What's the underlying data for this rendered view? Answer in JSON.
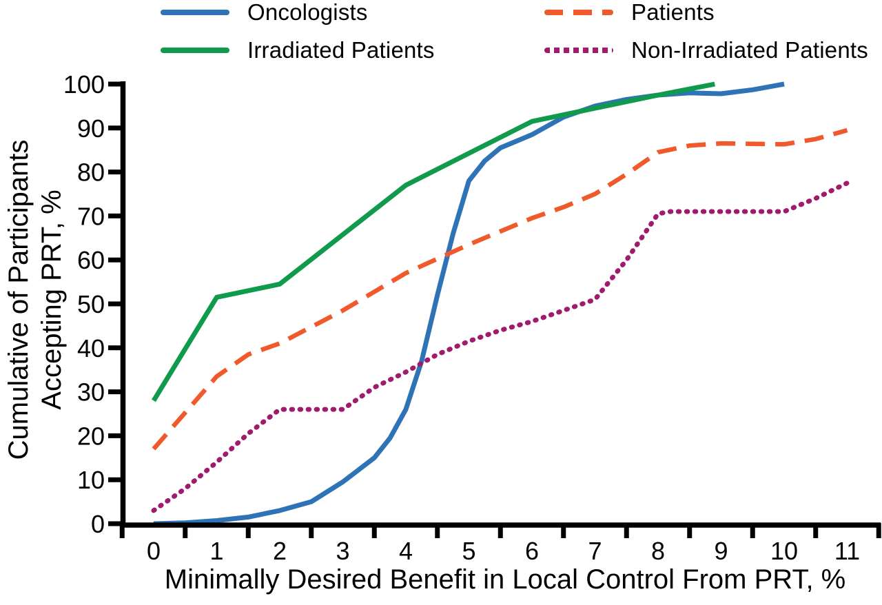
{
  "figure": {
    "background": "#ffffff",
    "text_color": "#000000"
  },
  "legend": {
    "position": "top",
    "items": [
      {
        "label": "Oncologists",
        "series_index": 0
      },
      {
        "label": "Patients",
        "series_index": 1
      },
      {
        "label": "Irradiated Patients",
        "series_index": 2
      },
      {
        "label": "Non-Irradiated Patients",
        "series_index": 3
      }
    ]
  },
  "chart_data": {
    "type": "line",
    "title": "",
    "xlabel": "Minimally Desired Benefit in Local Control From PRT, %",
    "ylabel_lines": [
      "Cumulative of Participants",
      "Accepting PRT, %"
    ],
    "xlim": [
      -0.5,
      11.5
    ],
    "ylim": [
      0,
      100
    ],
    "xticks": [
      0,
      1,
      2,
      3,
      4,
      5,
      6,
      7,
      8,
      9,
      10,
      11
    ],
    "yticks": [
      0,
      10,
      20,
      30,
      40,
      50,
      60,
      70,
      80,
      90,
      100
    ],
    "grid": false,
    "legend_position": "top",
    "series": [
      {
        "name": "Oncologists",
        "color": "#2e73b6",
        "style": "solid",
        "points": [
          [
            0,
            0
          ],
          [
            0.5,
            0.2
          ],
          [
            1,
            0.7
          ],
          [
            1.5,
            1.5
          ],
          [
            2,
            3
          ],
          [
            2.5,
            5
          ],
          [
            3,
            9.5
          ],
          [
            3.5,
            15
          ],
          [
            3.75,
            19.5
          ],
          [
            4,
            26
          ],
          [
            4.25,
            37
          ],
          [
            4.5,
            52
          ],
          [
            4.75,
            66
          ],
          [
            5,
            78
          ],
          [
            5.25,
            82.5
          ],
          [
            5.5,
            85.5
          ],
          [
            6,
            88.5
          ],
          [
            6.5,
            92.5
          ],
          [
            7,
            95
          ],
          [
            7.5,
            96.5
          ],
          [
            8,
            97.5
          ],
          [
            8.5,
            98
          ],
          [
            9,
            97.8
          ],
          [
            9.5,
            98.7
          ],
          [
            10,
            100
          ]
        ]
      },
      {
        "name": "Patients",
        "color": "#f0592b",
        "style": "dashed",
        "points": [
          [
            0,
            17
          ],
          [
            1,
            33.5
          ],
          [
            1.5,
            38.5
          ],
          [
            2,
            41
          ],
          [
            3,
            48.5
          ],
          [
            4,
            57
          ],
          [
            5,
            63.5
          ],
          [
            6,
            69.5
          ],
          [
            6.5,
            72
          ],
          [
            7,
            75
          ],
          [
            7.5,
            79.5
          ],
          [
            8,
            84.5
          ],
          [
            8.5,
            86
          ],
          [
            9,
            86.5
          ],
          [
            10,
            86.3
          ],
          [
            10.5,
            87.5
          ],
          [
            11,
            89.5
          ]
        ]
      },
      {
        "name": "Irradiated Patients",
        "color": "#109a4c",
        "style": "solid",
        "points": [
          [
            0,
            28
          ],
          [
            1,
            51.5
          ],
          [
            2,
            54.5
          ],
          [
            4,
            77
          ],
          [
            6,
            91.5
          ],
          [
            7,
            94.5
          ],
          [
            8,
            97.5
          ],
          [
            8.9,
            100
          ]
        ]
      },
      {
        "name": "Non-Irradiated Patients",
        "color": "#a01b6d",
        "style": "dotted",
        "points": [
          [
            0,
            3
          ],
          [
            0.5,
            8
          ],
          [
            1,
            14
          ],
          [
            1.5,
            20.5
          ],
          [
            2,
            26
          ],
          [
            3,
            26
          ],
          [
            3.5,
            31
          ],
          [
            4,
            34.5
          ],
          [
            4.5,
            38.5
          ],
          [
            5,
            41.5
          ],
          [
            5.5,
            44
          ],
          [
            6,
            46
          ],
          [
            6.5,
            48.5
          ],
          [
            7,
            51
          ],
          [
            7.5,
            60
          ],
          [
            8,
            70.5
          ],
          [
            8.2,
            71
          ],
          [
            10,
            71
          ],
          [
            10.5,
            74
          ],
          [
            11,
            77.5
          ]
        ]
      }
    ]
  }
}
